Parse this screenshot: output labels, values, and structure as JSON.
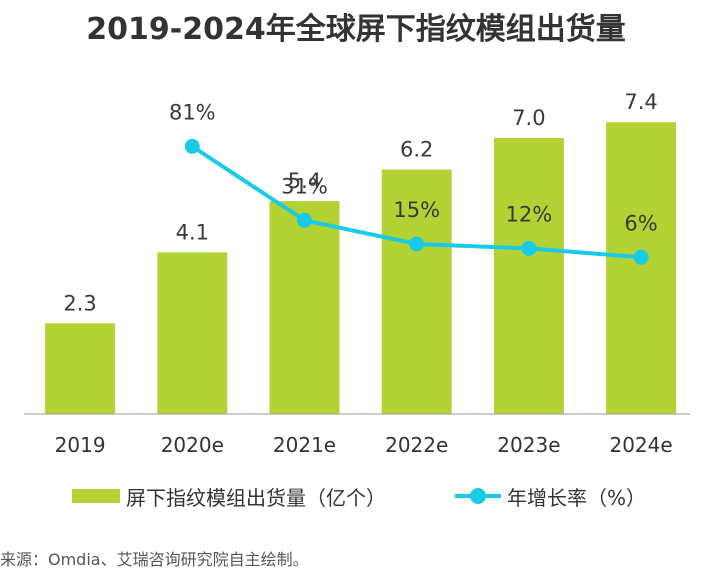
{
  "chart_data": {
    "type": "bar+line",
    "title": "2019-2024年全球屏下指纹模组出货量",
    "categories": [
      "2019",
      "2020e",
      "2021e",
      "2022e",
      "2023e",
      "2024e"
    ],
    "series": [
      {
        "name": "屏下指纹模组出货量（亿个）",
        "type": "bar",
        "color": "#b3d233",
        "values": [
          2.3,
          4.1,
          5.4,
          6.2,
          7.0,
          7.4
        ],
        "labels": [
          "2.3",
          "4.1",
          "5.4",
          "6.2",
          "7.0",
          "7.4"
        ]
      },
      {
        "name": "年增长率（%）",
        "type": "line",
        "color": "#18cce8",
        "values": [
          null,
          81,
          31,
          15,
          12,
          6
        ],
        "labels": [
          "",
          "81%",
          "31%",
          "15%",
          "12%",
          "6%"
        ]
      }
    ],
    "bar_ylim": [
      0,
      10.5
    ],
    "line_ylim": [
      -100,
      180
    ],
    "grid": false,
    "legend_position": "bottom",
    "source": "来源：Omdia、艾瑞咨询研究院自主绘制。"
  }
}
